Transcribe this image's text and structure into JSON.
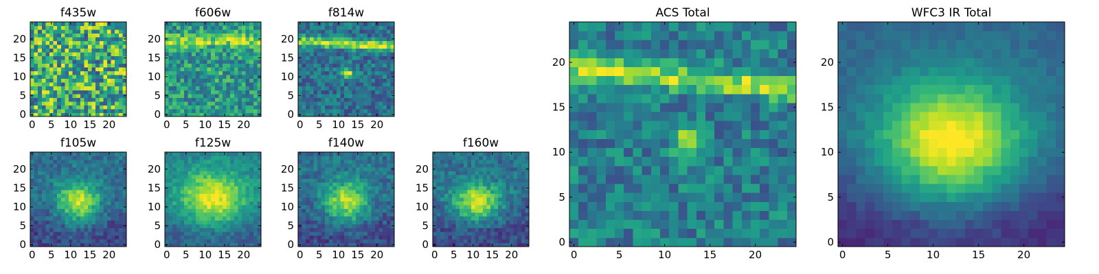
{
  "figure": {
    "background": "#ffffff",
    "colormap": "viridis",
    "colormap_stops": [
      "#440154",
      "#482878",
      "#3e4989",
      "#31688e",
      "#26828e",
      "#1f9e89",
      "#35b779",
      "#6ece58",
      "#b5de2b",
      "#fde725"
    ]
  },
  "chart_data": [
    {
      "id": "f435w",
      "type": "heatmap",
      "title": "f435w",
      "xlim": [
        0,
        24
      ],
      "ylim": [
        0,
        24
      ],
      "xticks": [
        0,
        5,
        10,
        15,
        20
      ],
      "yticks": [
        0,
        5,
        10,
        15,
        20
      ],
      "grid_size": [
        25,
        25
      ],
      "pattern": "uniform-noise",
      "z_range": [
        0,
        1
      ]
    },
    {
      "id": "f606w",
      "type": "heatmap",
      "title": "f606w",
      "xlim": [
        0,
        24
      ],
      "ylim": [
        0,
        24
      ],
      "xticks": [
        0,
        5,
        10,
        15,
        20
      ],
      "yticks": [
        0,
        5,
        10,
        15,
        20
      ],
      "grid_size": [
        25,
        25
      ],
      "pattern": "noise with faint horizontal band near y=19-20",
      "z_range": [
        0,
        1
      ]
    },
    {
      "id": "f814w",
      "type": "heatmap",
      "title": "f814w",
      "xlim": [
        0,
        24
      ],
      "ylim": [
        0,
        24
      ],
      "xticks": [
        0,
        5,
        10,
        15,
        20
      ],
      "yticks": [
        0,
        5,
        10,
        15,
        20
      ],
      "grid_size": [
        25,
        25
      ],
      "pattern": "bright horizontal band near y=18-20, compact source at (12,11)",
      "z_range": [
        0,
        1
      ]
    },
    {
      "id": "f105w",
      "type": "heatmap",
      "title": "f105w",
      "xlim": [
        0,
        24
      ],
      "ylim": [
        0,
        24
      ],
      "xticks": [
        0,
        5,
        10,
        15,
        20
      ],
      "yticks": [
        0,
        5,
        10,
        15,
        20
      ],
      "grid_size": [
        25,
        25
      ],
      "pattern": "extended source centred near (12,11), dark lower region",
      "z_range": [
        0,
        1
      ]
    },
    {
      "id": "f125w",
      "type": "heatmap",
      "title": "f125w",
      "xlim": [
        0,
        24
      ],
      "ylim": [
        0,
        24
      ],
      "xticks": [
        0,
        5,
        10,
        15,
        20
      ],
      "yticks": [
        0,
        5,
        10,
        15,
        20
      ],
      "grid_size": [
        25,
        25
      ],
      "pattern": "broad extended source centred near (12,12)",
      "z_range": [
        0,
        1
      ]
    },
    {
      "id": "f140w",
      "type": "heatmap",
      "title": "f140w",
      "xlim": [
        0,
        24
      ],
      "ylim": [
        0,
        24
      ],
      "xticks": [
        0,
        5,
        10,
        15,
        20
      ],
      "yticks": [
        0,
        5,
        10,
        15,
        20
      ],
      "grid_size": [
        25,
        25
      ],
      "pattern": "extended source centred near (12,11), dark lower region",
      "z_range": [
        0,
        1
      ]
    },
    {
      "id": "f160w",
      "type": "heatmap",
      "title": "f160w",
      "xlim": [
        0,
        24
      ],
      "ylim": [
        0,
        24
      ],
      "xticks": [
        0,
        5,
        10,
        15,
        20
      ],
      "yticks": [
        0,
        5,
        10,
        15,
        20
      ],
      "grid_size": [
        25,
        25
      ],
      "pattern": "extended source centred near (12,11), dark lower region",
      "z_range": [
        0,
        1
      ]
    },
    {
      "id": "acs_total",
      "type": "heatmap",
      "title": "ACS Total",
      "xlim": [
        0,
        24
      ],
      "ylim": [
        0,
        24
      ],
      "xticks": [
        0,
        5,
        10,
        15,
        20
      ],
      "yticks": [
        0,
        5,
        10,
        15,
        20
      ],
      "grid_size": [
        25,
        25
      ],
      "pattern": "bright horizontal band near y=18-20 slanting, compact bright source at (12,11)",
      "z_range": [
        0,
        1
      ]
    },
    {
      "id": "wfc3_total",
      "type": "heatmap",
      "title": "WFC3 IR Total",
      "xlim": [
        0,
        24
      ],
      "ylim": [
        0,
        24
      ],
      "xticks": [
        0,
        5,
        10,
        15,
        20
      ],
      "yticks": [
        0,
        5,
        10,
        15,
        20
      ],
      "grid_size": [
        25,
        25
      ],
      "pattern": "smooth extended source centred near (12,11), dark bottom rows",
      "z_range": [
        0,
        1
      ]
    }
  ]
}
